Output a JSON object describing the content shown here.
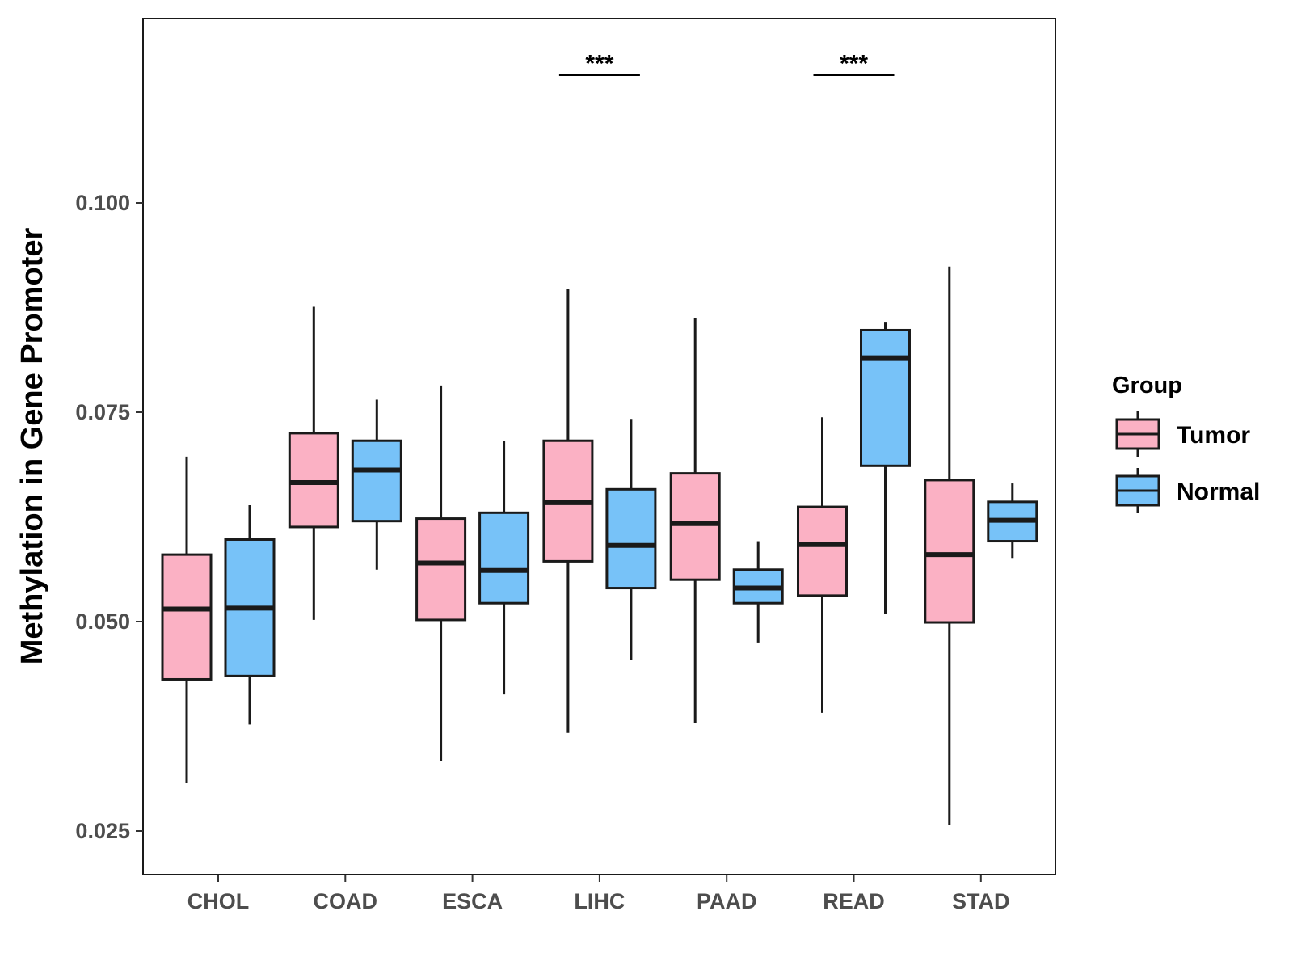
{
  "chart_data": {
    "type": "boxplot",
    "title": "",
    "xlabel": "",
    "ylabel": "Methylation in Gene Promoter",
    "ylim": [
      0.02,
      0.1225
    ],
    "yticks": [
      0.025,
      0.05,
      0.075,
      0.1
    ],
    "ytick_labels": [
      "0.025",
      "0.050",
      "0.075",
      "0.100"
    ],
    "categories": [
      "CHOL",
      "COAD",
      "ESCA",
      "LIHC",
      "PAAD",
      "READ",
      "STAD"
    ],
    "legend": {
      "title": "Group",
      "position": "right",
      "entries": [
        {
          "name": "Tumor",
          "color": "#FBB1C4"
        },
        {
          "name": "Normal",
          "color": "#77C2F8"
        }
      ]
    },
    "series": [
      {
        "name": "Tumor",
        "color": "#FBB1C4",
        "boxes": [
          {
            "min": 0.0307,
            "q1": 0.0431,
            "median": 0.0515,
            "q3": 0.058,
            "max": 0.0697
          },
          {
            "min": 0.0502,
            "q1": 0.0613,
            "median": 0.0666,
            "q3": 0.0725,
            "max": 0.0876
          },
          {
            "min": 0.0334,
            "q1": 0.0502,
            "median": 0.057,
            "q3": 0.0623,
            "max": 0.0782
          },
          {
            "min": 0.0367,
            "q1": 0.0572,
            "median": 0.0642,
            "q3": 0.0716,
            "max": 0.0897
          },
          {
            "min": 0.0379,
            "q1": 0.055,
            "median": 0.0617,
            "q3": 0.0677,
            "max": 0.0862
          },
          {
            "min": 0.0391,
            "q1": 0.0531,
            "median": 0.0592,
            "q3": 0.0637,
            "max": 0.0744
          },
          {
            "min": 0.0257,
            "q1": 0.0499,
            "median": 0.058,
            "q3": 0.0669,
            "max": 0.0924
          }
        ]
      },
      {
        "name": "Normal",
        "color": "#77C2F8",
        "boxes": [
          {
            "min": 0.0377,
            "q1": 0.0435,
            "median": 0.0516,
            "q3": 0.0598,
            "max": 0.0639
          },
          {
            "min": 0.0562,
            "q1": 0.062,
            "median": 0.0681,
            "q3": 0.0716,
            "max": 0.0765
          },
          {
            "min": 0.0413,
            "q1": 0.0522,
            "median": 0.0561,
            "q3": 0.063,
            "max": 0.0716
          },
          {
            "min": 0.0454,
            "q1": 0.054,
            "median": 0.0591,
            "q3": 0.0658,
            "max": 0.0742
          },
          {
            "min": 0.0475,
            "q1": 0.0522,
            "median": 0.054,
            "q3": 0.0562,
            "max": 0.0596
          },
          {
            "min": 0.0509,
            "q1": 0.0686,
            "median": 0.0815,
            "q3": 0.0848,
            "max": 0.0858
          },
          {
            "min": 0.0576,
            "q1": 0.0596,
            "median": 0.0621,
            "q3": 0.0643,
            "max": 0.0665
          }
        ]
      }
    ],
    "annotations": [
      {
        "category": "LIHC",
        "label": "***",
        "y": 0.1153
      },
      {
        "category": "READ",
        "label": "***",
        "y": 0.1153
      }
    ]
  }
}
